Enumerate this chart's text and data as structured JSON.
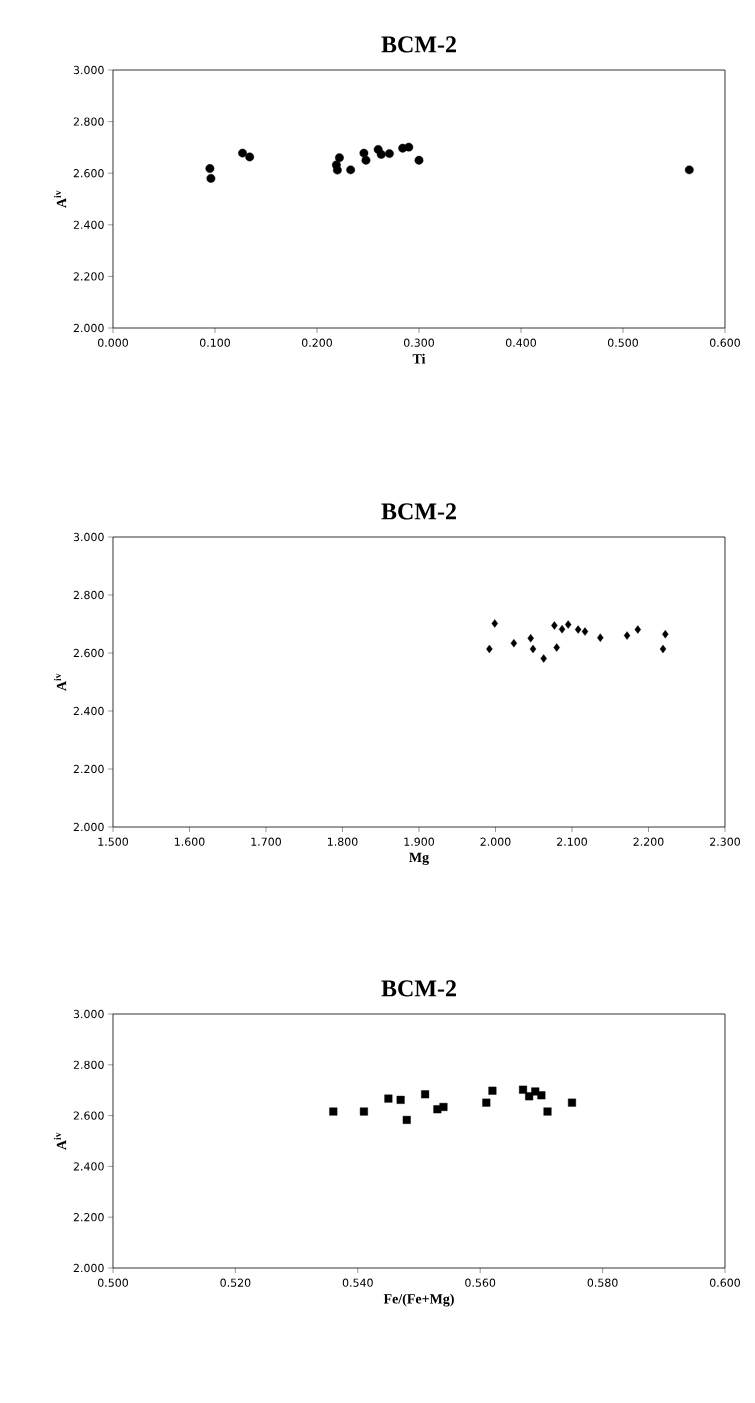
{
  "chart_data": [
    {
      "type": "scatter",
      "title": "BCM-2",
      "xlabel": "Ti",
      "ylabel": "A$^{iv}$",
      "marker": "circle",
      "color": "#000000",
      "x": [
        0.095,
        0.096,
        0.127,
        0.134,
        0.219,
        0.22,
        0.222,
        0.233,
        0.246,
        0.248,
        0.26,
        0.263,
        0.271,
        0.284,
        0.29,
        0.3,
        0.565
      ],
      "values": [
        2.618,
        2.58,
        2.678,
        2.663,
        2.632,
        2.612,
        2.66,
        2.613,
        2.678,
        2.65,
        2.692,
        2.673,
        2.676,
        2.697,
        2.701,
        2.65,
        2.613
      ],
      "xlim": [
        0,
        0.6
      ],
      "ylim": [
        2,
        3
      ],
      "xticks": [
        {
          "value": 0,
          "label": "0.000"
        },
        {
          "value": 0.1,
          "label": "0.100"
        },
        {
          "value": 0.2,
          "label": "0.200"
        },
        {
          "value": 0.3,
          "label": "0.300"
        },
        {
          "value": 0.4,
          "label": "0.400"
        },
        {
          "value": 0.5,
          "label": "0.500"
        },
        {
          "value": 0.6,
          "label": "0.600"
        }
      ],
      "yticks": [
        {
          "value": 2,
          "label": "2.000"
        },
        {
          "value": 2.2,
          "label": "2.200"
        },
        {
          "value": 2.4,
          "label": "2.400"
        },
        {
          "value": 2.6,
          "label": "2.600"
        },
        {
          "value": 2.8,
          "label": "2.800"
        },
        {
          "value": 3,
          "label": "3.000"
        }
      ]
    },
    {
      "type": "scatter",
      "title": "BCM-2",
      "xlabel": "Mg",
      "ylabel": "A$^{iv}$",
      "marker": "diamond",
      "color": "#000000",
      "x": [
        1.992,
        1.999,
        2.024,
        2.046,
        2.049,
        2.063,
        2.077,
        2.08,
        2.087,
        2.095,
        2.108,
        2.117,
        2.137,
        2.172,
        2.186,
        2.219,
        2.222
      ],
      "values": [
        2.614,
        2.702,
        2.634,
        2.651,
        2.614,
        2.581,
        2.695,
        2.619,
        2.682,
        2.698,
        2.681,
        2.674,
        2.653,
        2.66,
        2.681,
        2.614,
        2.665
      ],
      "xlim": [
        1.5,
        2.3
      ],
      "ylim": [
        2,
        3
      ],
      "xticks": [
        {
          "value": 1.5,
          "label": "1.500"
        },
        {
          "value": 1.6,
          "label": "1.600"
        },
        {
          "value": 1.7,
          "label": "1.700"
        },
        {
          "value": 1.8,
          "label": "1.800"
        },
        {
          "value": 1.9,
          "label": "1.900"
        },
        {
          "value": 2.0,
          "label": "2.000"
        },
        {
          "value": 2.1,
          "label": "2.100"
        },
        {
          "value": 2.2,
          "label": "2.200"
        },
        {
          "value": 2.3,
          "label": "2.300"
        }
      ],
      "yticks": [
        {
          "value": 2,
          "label": "2.000"
        },
        {
          "value": 2.2,
          "label": "2.200"
        },
        {
          "value": 2.4,
          "label": "2.400"
        },
        {
          "value": 2.6,
          "label": "2.600"
        },
        {
          "value": 2.8,
          "label": "2.800"
        },
        {
          "value": 3,
          "label": "3.000"
        }
      ]
    },
    {
      "type": "scatter",
      "title": "BCM-2",
      "xlabel": "Fe/(Fe+Mg)",
      "ylabel": "A$^{iv}$",
      "marker": "square",
      "color": "#000000",
      "x": [
        0.536,
        0.541,
        0.545,
        0.547,
        0.548,
        0.551,
        0.553,
        0.554,
        0.561,
        0.562,
        0.567,
        0.568,
        0.569,
        0.57,
        0.571,
        0.575
      ],
      "values": [
        2.616,
        2.616,
        2.667,
        2.662,
        2.583,
        2.684,
        2.625,
        2.634,
        2.651,
        2.698,
        2.702,
        2.676,
        2.695,
        2.68,
        2.616,
        2.651
      ],
      "xlim": [
        0.5,
        0.6
      ],
      "ylim": [
        2,
        3
      ],
      "xticks": [
        {
          "value": 0.5,
          "label": "0.500"
        },
        {
          "value": 0.52,
          "label": "0.520"
        },
        {
          "value": 0.54,
          "label": "0.540"
        },
        {
          "value": 0.56,
          "label": "0.560"
        },
        {
          "value": 0.58,
          "label": "0.580"
        },
        {
          "value": 0.6,
          "label": "0.600"
        }
      ],
      "yticks": [
        {
          "value": 2,
          "label": "2.000"
        },
        {
          "value": 2.2,
          "label": "2.200"
        },
        {
          "value": 2.4,
          "label": "2.400"
        },
        {
          "value": 2.6,
          "label": "2.600"
        },
        {
          "value": 2.8,
          "label": "2.800"
        },
        {
          "value": 3,
          "label": "3.000"
        }
      ]
    }
  ]
}
